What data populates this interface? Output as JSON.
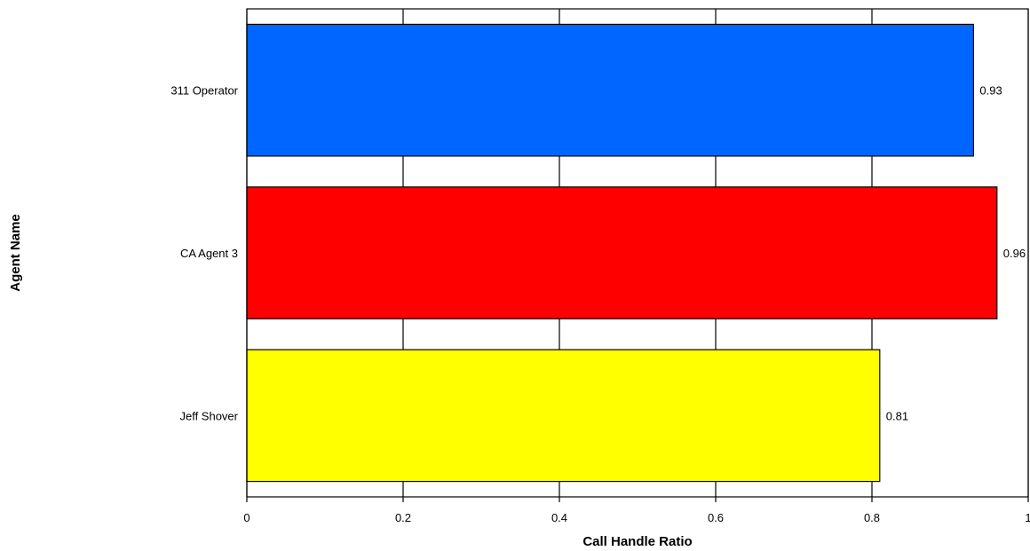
{
  "chart_data": {
    "type": "bar",
    "orientation": "horizontal",
    "title": "",
    "xlabel": "Call Handle Ratio",
    "ylabel": "Agent Name",
    "categories": [
      "311 Operator",
      "CA Agent 3",
      "Jeff Shover"
    ],
    "values": [
      0.93,
      0.96,
      0.81
    ],
    "data_labels": [
      "0.93",
      "0.96",
      "0.81"
    ],
    "colors": [
      "#0066ff",
      "#ff0000",
      "#ffff00"
    ],
    "xlim": [
      0,
      1
    ],
    "xticks": [
      0,
      0.2,
      0.4,
      0.6,
      0.8,
      1
    ],
    "xtick_labels": [
      "0",
      "0.2",
      "0.4",
      "0.6",
      "0.8",
      "1"
    ],
    "grid": "vertical",
    "legend": "none"
  }
}
